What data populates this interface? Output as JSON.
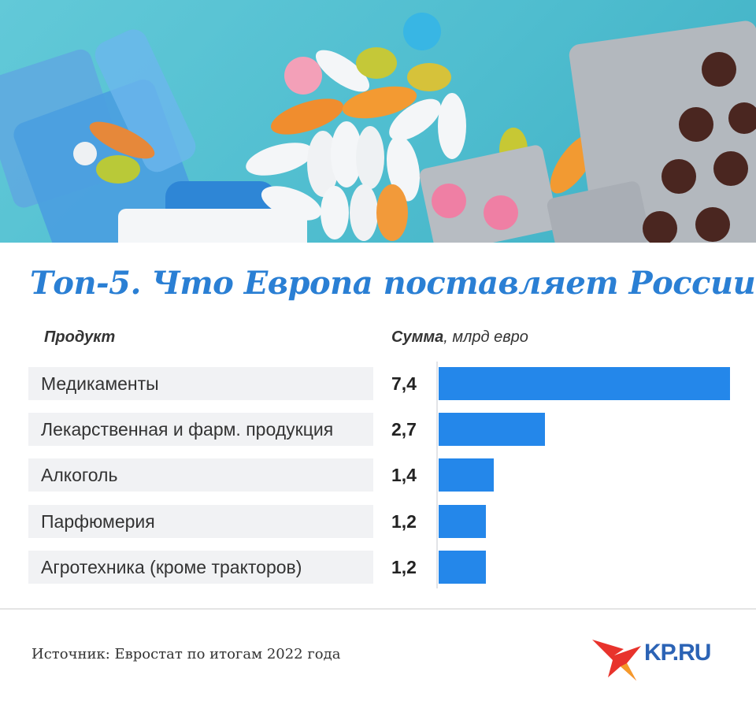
{
  "title": "Топ-5. Что Европа поставляет России",
  "headers": {
    "product": "Продукт",
    "sum_bold": "Сумма",
    "sum_unit": ", млрд евро"
  },
  "chart_data": {
    "type": "bar",
    "orientation": "horizontal",
    "categories": [
      "Медикаменты",
      "Лекарственная и фарм. продукция",
      "Алкоголь",
      "Парфюмерия",
      "Агротехника (кроме тракторов)"
    ],
    "values": [
      7.4,
      2.7,
      1.4,
      1.2,
      1.2
    ],
    "value_labels": [
      "7,4",
      "2,7",
      "1,4",
      "1,2",
      "1,2"
    ],
    "xlim": [
      0,
      7.4
    ],
    "bar_color": "#2487ea"
  },
  "source": "Источник: Евростат по итогам 2022 года",
  "logo_text": "KP.RU",
  "colors": {
    "title": "#2a7fd4",
    "bar": "#2487ea",
    "label_bg": "#f1f2f4",
    "logo_red": "#e8332c",
    "logo_blue": "#2b63b5"
  }
}
